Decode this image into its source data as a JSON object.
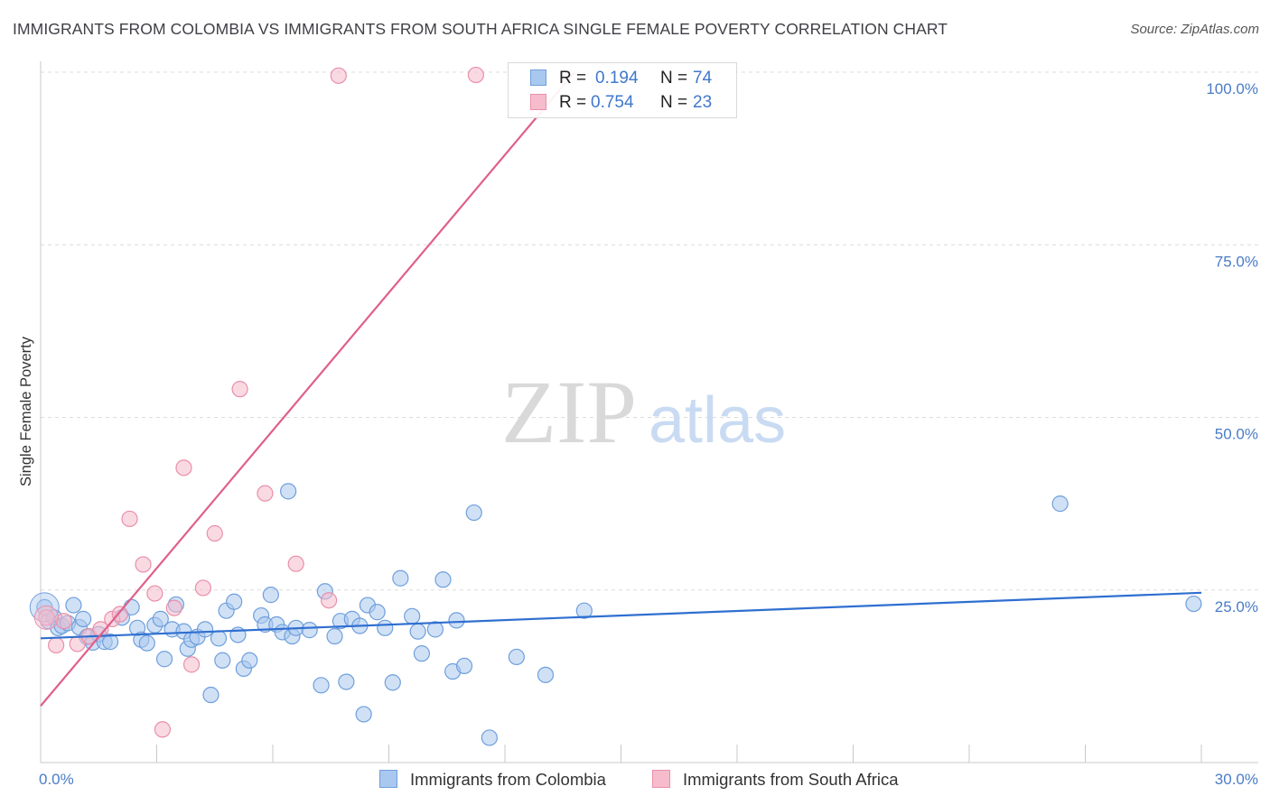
{
  "title": "IMMIGRANTS FROM COLOMBIA VS IMMIGRANTS FROM SOUTH AFRICA SINGLE FEMALE POVERTY CORRELATION CHART",
  "source": "Source: ZipAtlas.com",
  "legend": {
    "colombia": {
      "r_label": "R =",
      "r_value": "0.194",
      "n_label": "N =",
      "n_value": "74"
    },
    "south_africa": {
      "r_label": "R =",
      "r_value": "0.754",
      "n_label": "N =",
      "n_value": "23"
    }
  },
  "bottom_legend": {
    "colombia": "Immigrants from Colombia",
    "south_africa": "Immigrants from South Africa"
  },
  "watermark": {
    "zip": "ZIP",
    "atlas": "atlas"
  },
  "colors": {
    "colombia": "#a9c8ef",
    "colombia_edge": "#6f9fdc",
    "colombia_line": "#2f6fd0",
    "south_africa": "#f6bccb",
    "south_africa_edge": "#e98fab",
    "south_africa_line": "#e05f8a",
    "tick": "#4a7cc7"
  },
  "chart_data": {
    "type": "scatter",
    "title": "IMMIGRANTS FROM COLOMBIA VS IMMIGRANTS FROM SOUTH AFRICA SINGLE FEMALE POVERTY CORRELATION CHART",
    "xlabel": "",
    "ylabel": "Single Female Poverty",
    "xlim": [
      0,
      30
    ],
    "ylim": [
      0,
      100
    ],
    "x_tick_labels": [
      {
        "value": 0,
        "label": "0.0%"
      },
      {
        "value": 30,
        "label": "30.0%"
      }
    ],
    "y_tick_labels": [
      {
        "value": 25,
        "label": "25.0%"
      },
      {
        "value": 50,
        "label": "50.0%"
      },
      {
        "value": 75,
        "label": "75.0%"
      },
      {
        "value": 100,
        "label": "100.0%"
      }
    ],
    "grid": true,
    "series": [
      {
        "name": "Immigrants from Colombia",
        "R": 0.194,
        "N": 74,
        "trend": {
          "x": [
            0,
            30
          ],
          "y": [
            18.0,
            24.6
          ]
        },
        "points": [
          [
            0.2,
            20.5
          ],
          [
            0.35,
            21.0
          ],
          [
            0.45,
            19.5
          ],
          [
            0.55,
            19.8
          ],
          [
            0.7,
            20.2
          ],
          [
            0.85,
            22.8
          ],
          [
            1.0,
            19.6
          ],
          [
            1.1,
            20.8
          ],
          [
            1.2,
            18.2
          ],
          [
            1.35,
            17.4
          ],
          [
            1.5,
            18.6
          ],
          [
            1.65,
            17.5
          ],
          [
            1.8,
            17.5
          ],
          [
            2.1,
            21.0
          ],
          [
            2.35,
            22.5
          ],
          [
            2.5,
            19.5
          ],
          [
            2.6,
            17.8
          ],
          [
            2.75,
            17.3
          ],
          [
            2.95,
            19.9
          ],
          [
            3.1,
            20.8
          ],
          [
            3.2,
            15.0
          ],
          [
            3.4,
            19.3
          ],
          [
            3.5,
            22.9
          ],
          [
            3.7,
            19.0
          ],
          [
            3.8,
            16.5
          ],
          [
            3.9,
            17.8
          ],
          [
            4.05,
            18.2
          ],
          [
            4.25,
            19.3
          ],
          [
            4.4,
            9.8
          ],
          [
            4.6,
            18.0
          ],
          [
            4.7,
            14.8
          ],
          [
            4.8,
            22.0
          ],
          [
            5.0,
            23.3
          ],
          [
            5.1,
            18.5
          ],
          [
            5.25,
            13.6
          ],
          [
            5.4,
            14.8
          ],
          [
            5.7,
            21.3
          ],
          [
            5.8,
            20.0
          ],
          [
            5.95,
            24.3
          ],
          [
            6.1,
            20.0
          ],
          [
            6.25,
            18.9
          ],
          [
            6.4,
            39.3
          ],
          [
            6.5,
            18.3
          ],
          [
            6.6,
            19.5
          ],
          [
            6.95,
            19.2
          ],
          [
            7.25,
            11.2
          ],
          [
            7.35,
            24.8
          ],
          [
            7.6,
            18.3
          ],
          [
            7.75,
            20.5
          ],
          [
            7.9,
            11.7
          ],
          [
            8.05,
            20.8
          ],
          [
            8.25,
            19.8
          ],
          [
            8.35,
            7.0
          ],
          [
            8.45,
            22.8
          ],
          [
            8.7,
            21.8
          ],
          [
            8.9,
            19.5
          ],
          [
            9.1,
            11.6
          ],
          [
            9.3,
            26.7
          ],
          [
            9.6,
            21.2
          ],
          [
            9.75,
            19.0
          ],
          [
            9.85,
            15.8
          ],
          [
            10.2,
            19.3
          ],
          [
            10.4,
            26.5
          ],
          [
            10.65,
            13.2
          ],
          [
            10.75,
            20.6
          ],
          [
            10.95,
            14.0
          ],
          [
            11.2,
            36.2
          ],
          [
            11.6,
            3.6
          ],
          [
            12.3,
            15.3
          ],
          [
            13.05,
            12.7
          ],
          [
            14.05,
            22.0
          ],
          [
            26.35,
            37.5
          ],
          [
            29.8,
            23.0
          ],
          [
            0.1,
            22.5
          ]
        ]
      },
      {
        "name": "Immigrants from South Africa",
        "R": 0.754,
        "N": 23,
        "trend": {
          "x": [
            0,
            13.8
          ],
          "y": [
            8.2,
            100
          ]
        },
        "points": [
          [
            0.15,
            21.0
          ],
          [
            0.4,
            17.0
          ],
          [
            0.6,
            20.5
          ],
          [
            0.95,
            17.2
          ],
          [
            1.25,
            18.3
          ],
          [
            1.55,
            19.3
          ],
          [
            1.85,
            20.8
          ],
          [
            2.05,
            21.5
          ],
          [
            2.3,
            35.3
          ],
          [
            2.65,
            28.7
          ],
          [
            2.95,
            24.5
          ],
          [
            3.15,
            4.8
          ],
          [
            3.45,
            22.4
          ],
          [
            3.7,
            42.7
          ],
          [
            3.9,
            14.2
          ],
          [
            4.2,
            25.3
          ],
          [
            4.5,
            33.2
          ],
          [
            5.15,
            54.1
          ],
          [
            5.8,
            39.0
          ],
          [
            6.6,
            28.8
          ],
          [
            7.45,
            23.5
          ],
          [
            7.7,
            99.5
          ],
          [
            11.25,
            99.6
          ]
        ]
      }
    ]
  }
}
